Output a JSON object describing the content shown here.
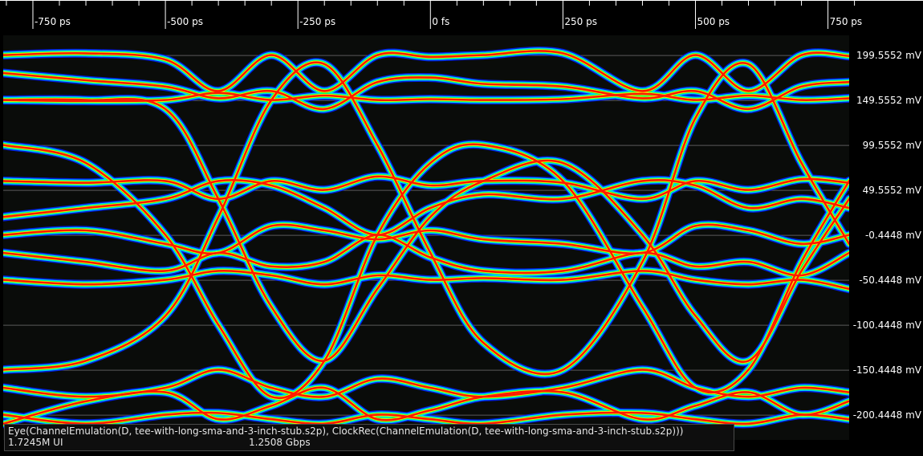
{
  "chart_data": {
    "type": "eye-diagram",
    "x_axis": {
      "unit": "ps",
      "range": [
        -806,
        790
      ],
      "ticks": [
        {
          "value": -750,
          "label": "-750 ps"
        },
        {
          "value": -500,
          "label": "-500 ps"
        },
        {
          "value": -250,
          "label": "-250 ps"
        },
        {
          "value": 0,
          "label": "0 fs"
        },
        {
          "value": 250,
          "label": "250 ps"
        },
        {
          "value": 500,
          "label": "500 ps"
        },
        {
          "value": 750,
          "label": "750 ps"
        }
      ]
    },
    "y_axis": {
      "unit": "mV",
      "range": [
        -228,
        222
      ],
      "ticks": [
        {
          "value": 199.5552,
          "label": "199.5552 mV"
        },
        {
          "value": 149.5552,
          "label": "149.5552 mV"
        },
        {
          "value": 99.5552,
          "label": "99.5552 mV"
        },
        {
          "value": 49.5552,
          "label": "49.5552 mV"
        },
        {
          "value": -0.4448,
          "label": "-0.4448 mV"
        },
        {
          "value": -50.4448,
          "label": "-50.4448 mV"
        },
        {
          "value": -100.4448,
          "label": "-100.4448 mV"
        },
        {
          "value": -150.4448,
          "label": "-150.4448 mV"
        },
        {
          "value": -200.4448,
          "label": "-200.4448 mV"
        }
      ]
    },
    "grid": true,
    "colormap": [
      "#0022ff",
      "#00e0ff",
      "#00ff40",
      "#ffff00",
      "#ff1a00"
    ],
    "unit_interval_ps": 800,
    "eye_center_ps": [
      -400,
      400
    ],
    "traces": [
      [
        [
          -806,
          200
        ],
        [
          -650,
          202
        ],
        [
          -500,
          195
        ],
        [
          -400,
          160
        ],
        [
          -300,
          200
        ],
        [
          -200,
          160
        ],
        [
          -100,
          200
        ],
        [
          0,
          198
        ],
        [
          100,
          200
        ],
        [
          250,
          202
        ],
        [
          400,
          160
        ],
        [
          500,
          200
        ],
        [
          600,
          160
        ],
        [
          700,
          200
        ],
        [
          790,
          199
        ]
      ],
      [
        [
          -806,
          150
        ],
        [
          -650,
          149
        ],
        [
          -500,
          150
        ],
        [
          -400,
          158
        ],
        [
          -300,
          150
        ],
        [
          -200,
          155
        ],
        [
          -100,
          150
        ],
        [
          0,
          151
        ],
        [
          100,
          150
        ],
        [
          250,
          151
        ],
        [
          400,
          157
        ],
        [
          500,
          150
        ],
        [
          600,
          155
        ],
        [
          700,
          150
        ],
        [
          790,
          152
        ]
      ],
      [
        [
          -806,
          180
        ],
        [
          -650,
          172
        ],
        [
          -500,
          165
        ],
        [
          -400,
          152
        ],
        [
          -300,
          160
        ],
        [
          -200,
          140
        ],
        [
          -100,
          170
        ],
        [
          0,
          175
        ],
        [
          100,
          168
        ],
        [
          250,
          165
        ],
        [
          400,
          152
        ],
        [
          500,
          160
        ],
        [
          600,
          140
        ],
        [
          700,
          165
        ],
        [
          790,
          170
        ]
      ],
      [
        [
          -806,
          60
        ],
        [
          -650,
          58
        ],
        [
          -500,
          60
        ],
        [
          -400,
          40
        ],
        [
          -300,
          60
        ],
        [
          -200,
          50
        ],
        [
          -100,
          65
        ],
        [
          0,
          55
        ],
        [
          100,
          60
        ],
        [
          250,
          58
        ],
        [
          400,
          40
        ],
        [
          500,
          60
        ],
        [
          600,
          50
        ],
        [
          700,
          62
        ],
        [
          790,
          58
        ]
      ],
      [
        [
          -806,
          20
        ],
        [
          -650,
          30
        ],
        [
          -500,
          40
        ],
        [
          -400,
          60
        ],
        [
          -300,
          55
        ],
        [
          -200,
          30
        ],
        [
          -100,
          0
        ],
        [
          0,
          30
        ],
        [
          100,
          45
        ],
        [
          250,
          40
        ],
        [
          400,
          60
        ],
        [
          500,
          55
        ],
        [
          600,
          30
        ],
        [
          700,
          40
        ],
        [
          790,
          30
        ]
      ],
      [
        [
          -806,
          0
        ],
        [
          -650,
          5
        ],
        [
          -500,
          -10
        ],
        [
          -400,
          -20
        ],
        [
          -300,
          10
        ],
        [
          -200,
          5
        ],
        [
          -100,
          -5
        ],
        [
          0,
          5
        ],
        [
          100,
          -5
        ],
        [
          250,
          -10
        ],
        [
          400,
          -20
        ],
        [
          500,
          10
        ],
        [
          600,
          5
        ],
        [
          700,
          -10
        ],
        [
          790,
          0
        ]
      ],
      [
        [
          -806,
          -20
        ],
        [
          -650,
          -30
        ],
        [
          -500,
          -40
        ],
        [
          -400,
          -20
        ],
        [
          -300,
          -35
        ],
        [
          -200,
          -30
        ],
        [
          -100,
          0
        ],
        [
          0,
          -25
        ],
        [
          100,
          -40
        ],
        [
          250,
          -40
        ],
        [
          400,
          -20
        ],
        [
          500,
          -35
        ],
        [
          600,
          -30
        ],
        [
          700,
          -45
        ],
        [
          790,
          -20
        ]
      ],
      [
        [
          -806,
          -50
        ],
        [
          -650,
          -55
        ],
        [
          -500,
          -50
        ],
        [
          -400,
          -40
        ],
        [
          -300,
          -45
        ],
        [
          -200,
          -55
        ],
        [
          -100,
          -45
        ],
        [
          0,
          -50
        ],
        [
          100,
          -48
        ],
        [
          250,
          -50
        ],
        [
          400,
          -40
        ],
        [
          500,
          -50
        ],
        [
          600,
          -55
        ],
        [
          700,
          -50
        ],
        [
          790,
          -60
        ]
      ],
      [
        [
          -806,
          -170
        ],
        [
          -650,
          -180
        ],
        [
          -500,
          -170
        ],
        [
          -400,
          -150
        ],
        [
          -300,
          -170
        ],
        [
          -200,
          -180
        ],
        [
          -100,
          -160
        ],
        [
          0,
          -170
        ],
        [
          100,
          -180
        ],
        [
          250,
          -170
        ],
        [
          400,
          -150
        ],
        [
          500,
          -170
        ],
        [
          600,
          -180
        ],
        [
          700,
          -170
        ],
        [
          790,
          -175
        ]
      ],
      [
        [
          -806,
          -200
        ],
        [
          -650,
          -210
        ],
        [
          -500,
          -200
        ],
        [
          -400,
          -198
        ],
        [
          -300,
          -205
        ],
        [
          -200,
          -210
        ],
        [
          -100,
          -200
        ],
        [
          0,
          -205
        ],
        [
          100,
          -210
        ],
        [
          250,
          -200
        ],
        [
          400,
          -198
        ],
        [
          500,
          -205
        ],
        [
          600,
          -210
        ],
        [
          700,
          -200
        ],
        [
          790,
          -205
        ]
      ],
      [
        [
          -806,
          -210
        ],
        [
          -650,
          -185
        ],
        [
          -500,
          -175
        ],
        [
          -400,
          -205
        ],
        [
          -300,
          -190
        ],
        [
          -200,
          -170
        ],
        [
          -100,
          -205
        ],
        [
          0,
          -195
        ],
        [
          100,
          -180
        ],
        [
          250,
          -175
        ],
        [
          400,
          -205
        ],
        [
          500,
          -190
        ],
        [
          600,
          -175
        ],
        [
          700,
          -200
        ],
        [
          790,
          -185
        ]
      ],
      [
        [
          -806,
          150
        ],
        [
          -650,
          150
        ],
        [
          -500,
          140
        ],
        [
          -400,
          40
        ],
        [
          -300,
          -80
        ],
        [
          -200,
          -140
        ],
        [
          -100,
          -60
        ],
        [
          0,
          20
        ],
        [
          100,
          60
        ],
        [
          250,
          80
        ],
        [
          400,
          0
        ],
        [
          500,
          -90
        ],
        [
          600,
          -140
        ],
        [
          700,
          -40
        ],
        [
          790,
          40
        ]
      ],
      [
        [
          -806,
          -150
        ],
        [
          -650,
          -140
        ],
        [
          -500,
          -90
        ],
        [
          -400,
          20
        ],
        [
          -300,
          150
        ],
        [
          -200,
          190
        ],
        [
          -100,
          100
        ],
        [
          0,
          -20
        ],
        [
          100,
          -120
        ],
        [
          250,
          -150
        ],
        [
          400,
          -30
        ],
        [
          500,
          130
        ],
        [
          600,
          190
        ],
        [
          700,
          80
        ],
        [
          790,
          -10
        ]
      ],
      [
        [
          -806,
          100
        ],
        [
          -650,
          80
        ],
        [
          -500,
          0
        ],
        [
          -400,
          -100
        ],
        [
          -300,
          -180
        ],
        [
          -200,
          -140
        ],
        [
          -100,
          0
        ],
        [
          0,
          80
        ],
        [
          100,
          100
        ],
        [
          250,
          60
        ],
        [
          400,
          -80
        ],
        [
          500,
          -170
        ],
        [
          600,
          -150
        ],
        [
          700,
          -30
        ],
        [
          790,
          60
        ]
      ]
    ]
  },
  "info": {
    "expression": "Eye(ChannelEmulation(D, tee-with-long-sma-and-3-inch-stub.s2p), ClockRec(ChannelEmulation(D, tee-with-long-sma-and-3-inch-stub.s2p)))",
    "ui_count": "1.7245M UI",
    "bit_rate": "1.2508 Gbps"
  }
}
